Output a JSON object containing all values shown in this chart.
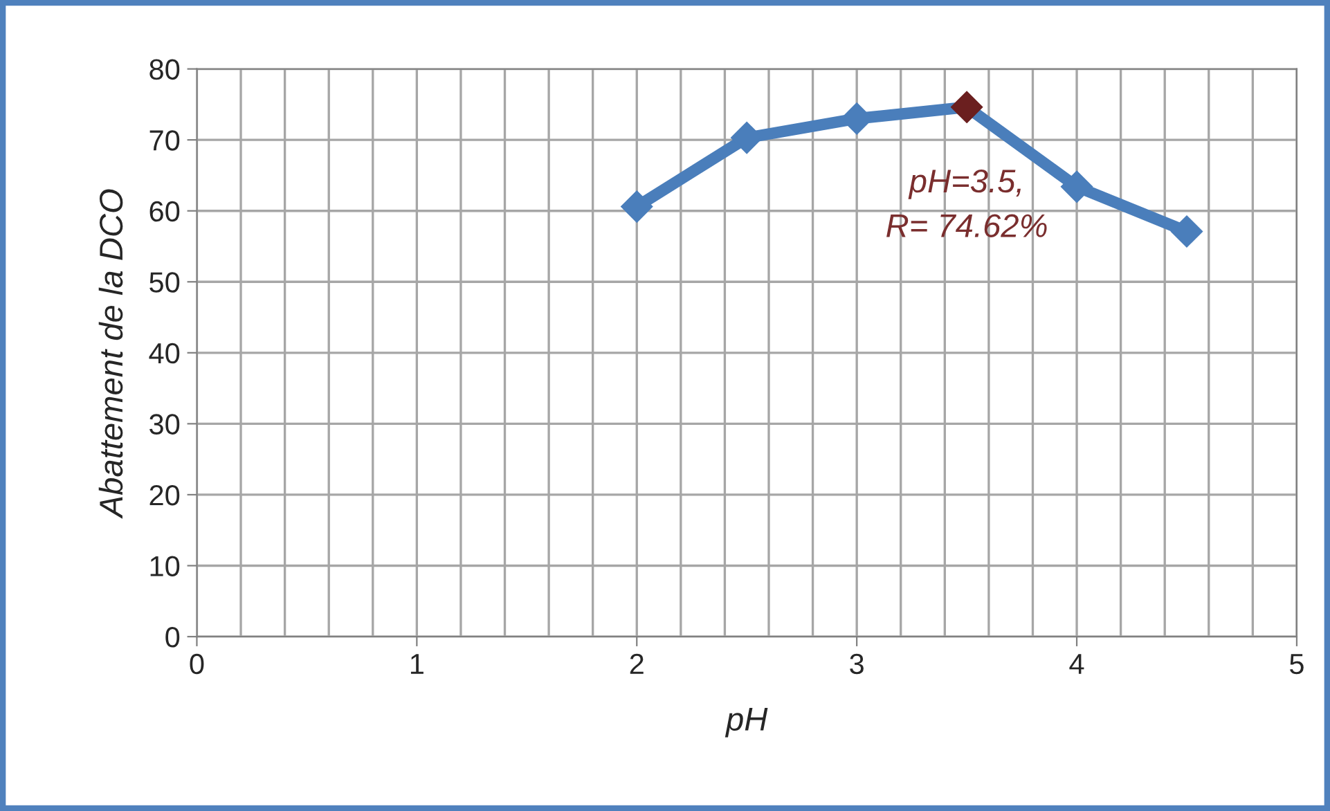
{
  "chart_data": {
    "type": "line",
    "xlabel": "pH",
    "ylabel": "Abattement de la DCO",
    "x": [
      2,
      2.5,
      3,
      3.5,
      4,
      4.5
    ],
    "series": [
      {
        "color": "#4a7ebb",
        "colors": [
          "#4a7ebb",
          "#4a7ebb",
          "#4a7ebb",
          "#6b1f1f",
          "#4a7ebb",
          "#4a7ebb"
        ],
        "values": [
          60.6,
          70.3,
          73,
          74.62,
          63.4,
          57.1
        ]
      }
    ],
    "annotations": [
      {
        "text": "pH=3.5,\nR= 74.62%",
        "x": 3.5,
        "y": 74.62
      }
    ],
    "xlim": [
      0,
      5
    ],
    "xticks": [
      0,
      1,
      2,
      3,
      4,
      5
    ],
    "ylim": [
      0,
      80
    ],
    "yticks": [
      0,
      10,
      20,
      30,
      40,
      50,
      60,
      70,
      80
    ],
    "grid": true,
    "marker": "diamond",
    "line_style": "solid"
  }
}
